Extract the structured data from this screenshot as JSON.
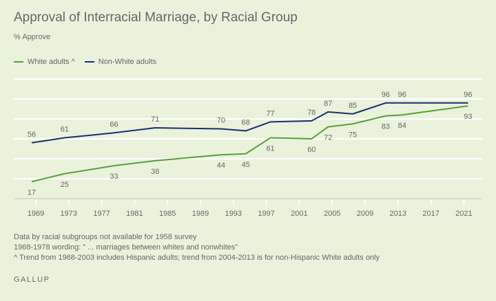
{
  "chart_data": {
    "type": "line",
    "title": "Approval of Interracial Marriage, by Racial Group",
    "subtitle": "% Approve",
    "xlabel": "",
    "ylabel": "",
    "ylim": [
      0,
      120
    ],
    "yticks": [
      0,
      20,
      40,
      60,
      80,
      100,
      120
    ],
    "y_tick_labels_shown": false,
    "xlim": [
      1968,
      2022
    ],
    "x_ticks": [
      "1969",
      "1973",
      "1977",
      "1981",
      "1985",
      "1989",
      "1993",
      "1997",
      "2001",
      "2005",
      "2009",
      "2013",
      "2017",
      "2021"
    ],
    "grid": true,
    "legend_position": "top-left",
    "series": [
      {
        "name": "White adults ^",
        "color": "#5a9e3a",
        "label_side": "below",
        "points": [
          {
            "x": 1968,
            "y": 17
          },
          {
            "x": 1972,
            "y": 25
          },
          {
            "x": 1978,
            "y": 33
          },
          {
            "x": 1983,
            "y": 38
          },
          {
            "x": 1991,
            "y": 44
          },
          {
            "x": 1994,
            "y": 45
          },
          {
            "x": 1997,
            "y": 61
          },
          {
            "x": 2002,
            "y": 60
          },
          {
            "x": 2004,
            "y": 72
          },
          {
            "x": 2007,
            "y": 75
          },
          {
            "x": 2011,
            "y": 83
          },
          {
            "x": 2013,
            "y": 84
          },
          {
            "x": 2021,
            "y": 93
          }
        ]
      },
      {
        "name": "Non-White adults",
        "color": "#1a2e6c",
        "label_side": "above",
        "points": [
          {
            "x": 1968,
            "y": 56
          },
          {
            "x": 1972,
            "y": 61
          },
          {
            "x": 1978,
            "y": 66
          },
          {
            "x": 1983,
            "y": 71
          },
          {
            "x": 1991,
            "y": 70
          },
          {
            "x": 1994,
            "y": 68
          },
          {
            "x": 1997,
            "y": 77
          },
          {
            "x": 2002,
            "y": 78
          },
          {
            "x": 2004,
            "y": 87
          },
          {
            "x": 2007,
            "y": 85
          },
          {
            "x": 2011,
            "y": 96
          },
          {
            "x": 2013,
            "y": 96
          },
          {
            "x": 2021,
            "y": 96
          }
        ]
      }
    ]
  },
  "legend": [
    {
      "label": "White adults ^",
      "color": "#5a9e3a"
    },
    {
      "label": "Non-White adults",
      "color": "#1a2e6c"
    }
  ],
  "notes": [
    "Data by racial subgroups not available for 1958 survey",
    "1968-1978 wording: \" ... marriages between whites and nonwhites\"",
    "^ Trend from 1968-2003 includes Hispanic adults; trend from 2004-2013 is for non-Hispanic White adults only"
  ],
  "brand": "GALLUP"
}
